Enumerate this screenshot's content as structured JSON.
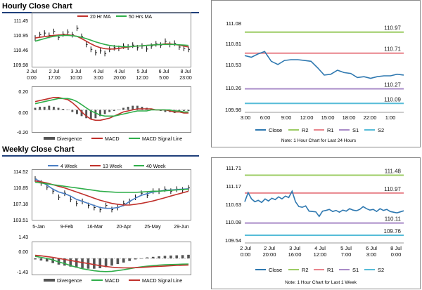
{
  "hourly": {
    "title": "Hourly Close Chart",
    "price": {
      "legend": [
        {
          "name": "20 Hr MA",
          "color": "#c0302b"
        },
        {
          "name": "50 Hrs MA",
          "color": "#2fae4a"
        }
      ],
      "y_ticks": [
        "111.45",
        "110.95",
        "110.46",
        "109.98"
      ],
      "x_ticks": [
        [
          "2 Jul",
          "0:00"
        ],
        [
          "2 Jul",
          "17:00"
        ],
        [
          "3 Jul",
          "10:00"
        ],
        [
          "4 Jul",
          "3:00"
        ],
        [
          "4 Jul",
          "20:00"
        ],
        [
          "5 Jul",
          "12:00"
        ],
        [
          "6 Jul",
          "5:00"
        ],
        [
          "8 Jul",
          "23:00"
        ]
      ]
    },
    "macd": {
      "y_ticks": [
        "0.20",
        "0.00",
        "-0.20"
      ],
      "legend": [
        {
          "name": "Divergence",
          "color": "#555555"
        },
        {
          "name": "MACD",
          "color": "#c0302b"
        },
        {
          "name": "MACD Signal Line",
          "color": "#2fae4a"
        }
      ]
    }
  },
  "weekly": {
    "title": "Weekly Close Chart",
    "price": {
      "legend": [
        {
          "name": "4 Week",
          "color": "#4a7ec4"
        },
        {
          "name": "13 Week",
          "color": "#c0302b"
        },
        {
          "name": "40 Week",
          "color": "#2fae4a"
        }
      ],
      "y_ticks": [
        "114.52",
        "110.85",
        "107.18",
        "103.51"
      ],
      "x_ticks": [
        "5-Jan",
        "9-Feb",
        "16-Mar",
        "20-Apr",
        "25-May",
        "29-Jun"
      ]
    },
    "macd": {
      "y_ticks": [
        "1.43",
        "0.00",
        "-1.43"
      ],
      "legend": [
        {
          "name": "Divergence",
          "color": "#555555"
        },
        {
          "name": "MACD",
          "color": "#2fae4a"
        },
        {
          "name": "MACD Signal Line",
          "color": "#c0302b"
        }
      ]
    }
  },
  "chart_data": [
    {
      "id": "hourly-24h",
      "type": "line",
      "title": "",
      "note": "Note: 1 Hour Chart for Last 24 Hours",
      "ylim": [
        109.98,
        111.08
      ],
      "y_ticks": [
        "111.08",
        "110.81",
        "110.53",
        "110.26",
        "109.98"
      ],
      "x_ticks": [
        "3:00",
        "6:00",
        "9:00",
        "12:00",
        "15:00",
        "18:00",
        "22:00",
        "1:00"
      ],
      "series": [
        {
          "name": "Close",
          "color": "#2e78b0",
          "values": [
            110.68,
            110.66,
            110.7,
            110.73,
            110.61,
            110.57,
            110.62,
            110.63,
            110.63,
            110.62,
            110.61,
            110.53,
            110.44,
            110.45,
            110.5,
            110.47,
            110.46,
            110.41,
            110.42,
            110.4,
            110.42,
            110.43,
            110.43,
            110.45,
            110.44
          ]
        }
      ],
      "levels": [
        {
          "name": "R2",
          "value": 110.97,
          "label": "110.97",
          "color": "#9ccc64"
        },
        {
          "name": "R1",
          "value": 110.71,
          "label": "110.71",
          "color": "#e8848c"
        },
        {
          "name": "S1",
          "value": 110.27,
          "label": "110.27",
          "color": "#a98bc8"
        },
        {
          "name": "S2",
          "value": 110.09,
          "label": "110.09",
          "color": "#56bcd8"
        }
      ],
      "legend_names": [
        "Close",
        "R2",
        "R1",
        "S1",
        "S2"
      ]
    },
    {
      "id": "hourly-1w",
      "type": "line",
      "title": "",
      "note": "Note: 1 Hour Chart for Last 1 Week",
      "ylim": [
        109.54,
        111.71
      ],
      "y_ticks": [
        "111.71",
        "111.17",
        "110.63",
        "110.08",
        "109.54"
      ],
      "x_ticks": [
        [
          "2 Jul",
          "0:00"
        ],
        [
          "2 Jul",
          "20:00"
        ],
        [
          "3 Jul",
          "16:00"
        ],
        [
          "4 Jul",
          "12:00"
        ],
        [
          "5 Jul",
          "7:00"
        ],
        [
          "6 Jul",
          "3:00"
        ],
        [
          "8 Jul",
          "0:00"
        ]
      ],
      "series": [
        {
          "name": "Close",
          "color": "#2e78b0",
          "values": [
            110.72,
            110.98,
            110.8,
            110.72,
            110.76,
            110.7,
            110.8,
            110.74,
            110.82,
            110.78,
            110.86,
            110.8,
            110.88,
            110.84,
            111.02,
            110.72,
            110.58,
            110.56,
            110.6,
            110.45,
            110.44,
            110.43,
            110.3,
            110.45,
            110.47,
            110.5,
            110.44,
            110.47,
            110.42,
            110.48,
            110.45,
            110.52,
            110.48,
            110.46,
            110.5,
            110.58,
            110.52,
            110.48,
            110.5,
            110.44,
            110.52,
            110.47,
            110.5,
            110.44,
            110.42,
            110.4,
            110.43,
            110.46
          ]
        }
      ],
      "levels": [
        {
          "name": "R2",
          "value": 111.48,
          "label": "111.48",
          "color": "#9ccc64"
        },
        {
          "name": "R1",
          "value": 110.97,
          "label": "110.97",
          "color": "#e8848c"
        },
        {
          "name": "S1",
          "value": 110.11,
          "label": "110.11",
          "color": "#a98bc8"
        },
        {
          "name": "S2",
          "value": 109.76,
          "label": "109.76",
          "color": "#56bcd8"
        }
      ],
      "legend_names": [
        "Close",
        "R2",
        "R1",
        "S1",
        "S2"
      ]
    },
    {
      "id": "hourly-price",
      "type": "line",
      "title": "",
      "ylim": [
        109.98,
        111.45
      ],
      "series": [
        {
          "name": "Close",
          "color": "#111111",
          "values": [
            110.8,
            110.9,
            110.95,
            110.88,
            111.0,
            110.82,
            110.92,
            110.98,
            110.9,
            111.1,
            110.85,
            110.6,
            110.45,
            110.35,
            110.4,
            110.32,
            110.45,
            110.5,
            110.48,
            110.55,
            110.52,
            110.58,
            110.5,
            110.55,
            110.46,
            110.55,
            110.62,
            110.58,
            110.7,
            110.6,
            110.64,
            110.52,
            110.48,
            110.45
          ]
        },
        {
          "name": "20 Hr MA",
          "color": "#c0302b",
          "values": [
            110.8,
            110.82,
            110.84,
            110.86,
            110.88,
            110.89,
            110.9,
            110.9,
            110.88,
            110.85,
            110.78,
            110.7,
            110.62,
            110.55,
            110.5,
            110.47,
            110.46,
            110.46,
            110.48,
            110.5,
            110.52,
            110.54,
            110.55,
            110.56,
            110.57,
            110.58,
            110.59,
            110.6,
            110.62,
            110.62,
            110.6,
            110.58,
            110.55,
            110.52
          ]
        },
        {
          "name": "50 Hrs MA",
          "color": "#2fae4a",
          "values": [
            110.7,
            110.74,
            110.78,
            110.82,
            110.85,
            110.87,
            110.88,
            110.88,
            110.87,
            110.85,
            110.82,
            110.78,
            110.73,
            110.68,
            110.64,
            110.6,
            110.57,
            110.55,
            110.54,
            110.53,
            110.53,
            110.54,
            110.55,
            110.56,
            110.57,
            110.58,
            110.59,
            110.6,
            110.6,
            110.6,
            110.6,
            110.59,
            110.58,
            110.57
          ]
        }
      ]
    },
    {
      "id": "hourly-macd",
      "type": "line",
      "title": "",
      "ylim": [
        -0.2,
        0.2
      ],
      "series": [
        {
          "name": "Divergence",
          "color": "#555555",
          "values": [
            0.02,
            0.03,
            0.03,
            0.04,
            0.03,
            0.02,
            0.01,
            0.0,
            -0.02,
            -0.04,
            -0.06,
            -0.08,
            -0.09,
            -0.08,
            -0.06,
            -0.04,
            -0.02,
            -0.01,
            0.0,
            0.02,
            0.03,
            0.04,
            0.04,
            0.03,
            0.02,
            0.01,
            0.0,
            -0.01,
            -0.02,
            -0.02,
            -0.03,
            -0.02,
            -0.01,
            -0.01
          ]
        },
        {
          "name": "MACD",
          "color": "#c0302b",
          "values": [
            0.08,
            0.09,
            0.1,
            0.11,
            0.12,
            0.12,
            0.11,
            0.1,
            0.07,
            0.03,
            -0.02,
            -0.06,
            -0.09,
            -0.1,
            -0.1,
            -0.09,
            -0.08,
            -0.06,
            -0.04,
            -0.02,
            -0.01,
            0.0,
            0.01,
            0.01,
            0.01,
            0.01,
            0.0,
            0.0,
            0.0,
            -0.01,
            -0.02,
            -0.02,
            -0.03,
            -0.03
          ]
        },
        {
          "name": "MACD Signal Line",
          "color": "#2fae4a",
          "values": [
            0.06,
            0.07,
            0.08,
            0.09,
            0.1,
            0.11,
            0.11,
            0.11,
            0.1,
            0.08,
            0.05,
            0.02,
            -0.01,
            -0.03,
            -0.05,
            -0.06,
            -0.06,
            -0.06,
            -0.05,
            -0.04,
            -0.03,
            -0.02,
            -0.01,
            -0.01,
            -0.01,
            0.0,
            0.0,
            0.0,
            0.0,
            0.0,
            -0.01,
            -0.01,
            -0.02,
            -0.02
          ]
        }
      ]
    },
    {
      "id": "weekly-price",
      "type": "line",
      "title": "",
      "ylim": [
        103.51,
        114.52
      ],
      "series": [
        {
          "name": "Close",
          "color": "#111111",
          "values": [
            113.0,
            112.0,
            111.0,
            110.0,
            108.5,
            109.5,
            108.0,
            107.0,
            107.5,
            106.5,
            106.0,
            105.5,
            106.5,
            105.5,
            106.0,
            107.0,
            107.5,
            108.5,
            109.5,
            109.0,
            110.0,
            110.0,
            110.5,
            110.0,
            110.5,
            110.3,
            110.8
          ]
        },
        {
          "name": "4 Week",
          "color": "#4a7ec4",
          "values": [
            113.0,
            112.3,
            111.5,
            110.5,
            109.8,
            109.4,
            108.8,
            108.0,
            107.5,
            107.0,
            106.5,
            106.0,
            105.8,
            105.8,
            106.0,
            106.5,
            107.5,
            108.3,
            109.0,
            109.4,
            109.8,
            110.0,
            110.2,
            110.3,
            110.4,
            110.5,
            110.6
          ]
        },
        {
          "name": "13 Week",
          "color": "#c0302b",
          "values": [
            112.5,
            112.3,
            112.0,
            111.6,
            111.2,
            110.8,
            110.3,
            109.8,
            109.3,
            108.8,
            108.3,
            107.8,
            107.4,
            107.0,
            106.8,
            106.6,
            106.6,
            106.8,
            107.0,
            107.3,
            107.6,
            108.0,
            108.4,
            108.8,
            109.2,
            109.6,
            110.0
          ]
        },
        {
          "name": "40 Week",
          "color": "#2fae4a",
          "values": [
            112.2,
            112.0,
            111.8,
            111.6,
            111.4,
            111.2,
            111.0,
            110.8,
            110.6,
            110.4,
            110.2,
            110.0,
            109.9,
            109.8,
            109.7,
            109.7,
            109.7,
            109.7,
            109.8,
            109.9,
            110.0,
            110.0,
            110.1,
            110.2,
            110.3,
            110.4,
            110.5
          ]
        }
      ]
    },
    {
      "id": "weekly-macd",
      "type": "line",
      "title": "",
      "ylim": [
        -1.43,
        1.43
      ],
      "series": [
        {
          "name": "Divergence",
          "color": "#555555",
          "values": [
            -0.1,
            -0.2,
            -0.3,
            -0.45,
            -0.6,
            -0.7,
            -0.8,
            -0.9,
            -0.95,
            -1.0,
            -1.0,
            -0.95,
            -0.85,
            -0.7,
            -0.55,
            -0.4,
            -0.25,
            -0.1,
            0.0,
            0.1,
            0.15,
            0.2,
            0.25,
            0.28,
            0.3,
            0.32,
            0.35
          ]
        },
        {
          "name": "MACD",
          "color": "#2fae4a",
          "values": [
            0.2,
            0.1,
            0.0,
            -0.15,
            -0.35,
            -0.5,
            -0.7,
            -0.85,
            -1.0,
            -1.1,
            -1.2,
            -1.25,
            -1.28,
            -1.25,
            -1.18,
            -1.1,
            -1.0,
            -0.9,
            -0.82,
            -0.75,
            -0.7,
            -0.65,
            -0.62,
            -0.6,
            -0.58,
            -0.56,
            -0.55
          ]
        },
        {
          "name": "MACD Signal Line",
          "color": "#c0302b",
          "values": [
            0.3,
            0.25,
            0.18,
            0.1,
            0.0,
            -0.1,
            -0.2,
            -0.3,
            -0.4,
            -0.5,
            -0.6,
            -0.7,
            -0.78,
            -0.85,
            -0.9,
            -0.92,
            -0.92,
            -0.9,
            -0.87,
            -0.84,
            -0.8,
            -0.77,
            -0.74,
            -0.71,
            -0.68,
            -0.66,
            -0.64
          ]
        }
      ]
    }
  ]
}
